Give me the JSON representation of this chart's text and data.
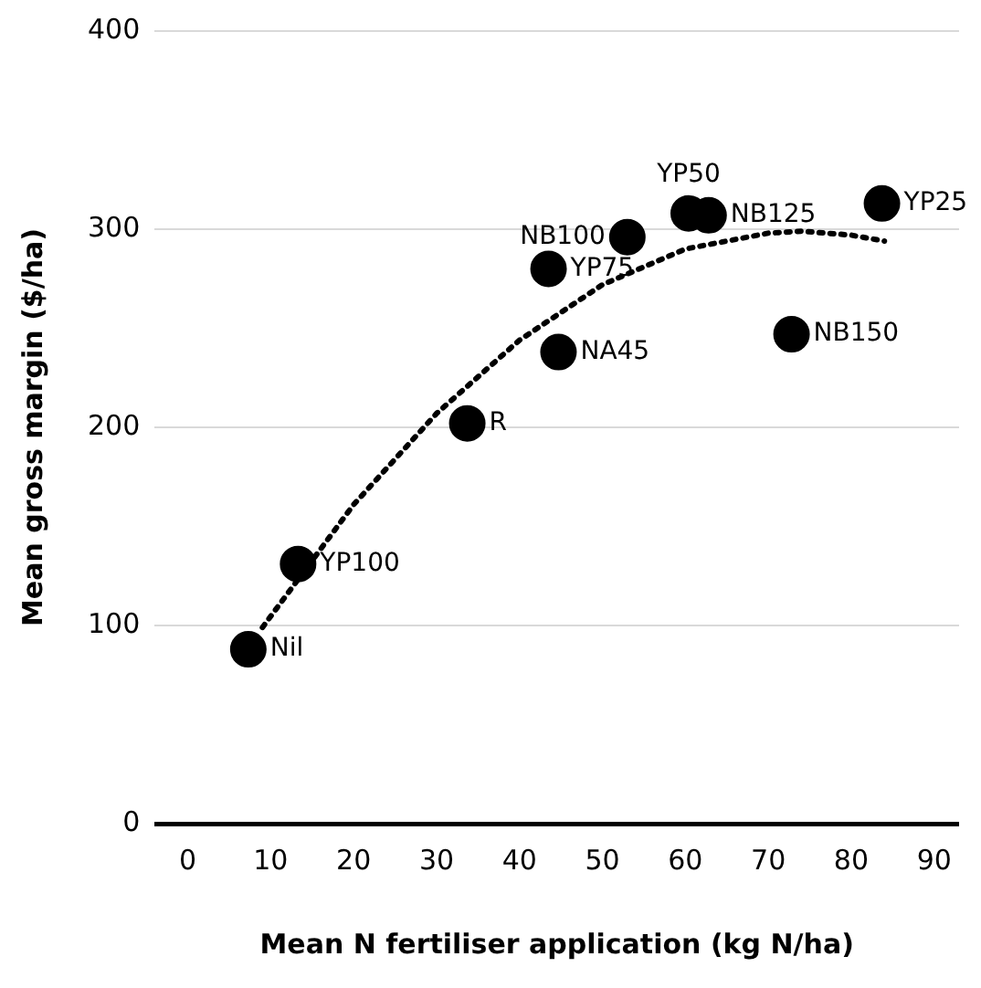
{
  "chart_data": {
    "type": "scatter",
    "xlabel": "Mean N fertiliser application (kg N/ha)",
    "ylabel": "Mean gross margin ($/ha)",
    "xlim": [
      -4,
      93
    ],
    "xticks": [
      0,
      10,
      20,
      30,
      40,
      50,
      60,
      70,
      80,
      90
    ],
    "ylim": [
      0,
      400
    ],
    "yticks": [
      0,
      100,
      200,
      300,
      400
    ],
    "grid": "y",
    "legend": false,
    "marker": "circle",
    "series": [
      {
        "type": "scatter",
        "color": "#000000",
        "x": [
          7.3,
          13.3,
          33.7,
          43.5,
          44.7,
          53,
          60.4,
          62.8,
          72.8,
          83.7
        ],
        "values": [
          88,
          131,
          202,
          280,
          238,
          296,
          308,
          307,
          247,
          313
        ]
      },
      {
        "type": "line",
        "line_style": "dotted",
        "marker": "none",
        "color": "#000000",
        "x": [
          9,
          20,
          30,
          40,
          50,
          60,
          70,
          74,
          80,
          84
        ],
        "values": [
          99,
          161,
          207,
          244,
          272,
          290,
          298,
          299,
          297,
          294
        ]
      }
    ],
    "annotations": [
      {
        "text": "Nil",
        "x": 7.3,
        "y": 88
      },
      {
        "text": "YP100",
        "x": 13.3,
        "y": 131
      },
      {
        "text": "R",
        "x": 33.7,
        "y": 202
      },
      {
        "text": "YP75",
        "x": 43.5,
        "y": 280
      },
      {
        "text": "NA45",
        "x": 44.7,
        "y": 238
      },
      {
        "text": "NB100",
        "x": 53,
        "y": 296
      },
      {
        "text": "YP50",
        "x": 60.4,
        "y": 308
      },
      {
        "text": "NB125",
        "x": 62.8,
        "y": 307
      },
      {
        "text": "NB150",
        "x": 72.8,
        "y": 247
      },
      {
        "text": "YP25",
        "x": 83.7,
        "y": 313
      }
    ]
  }
}
